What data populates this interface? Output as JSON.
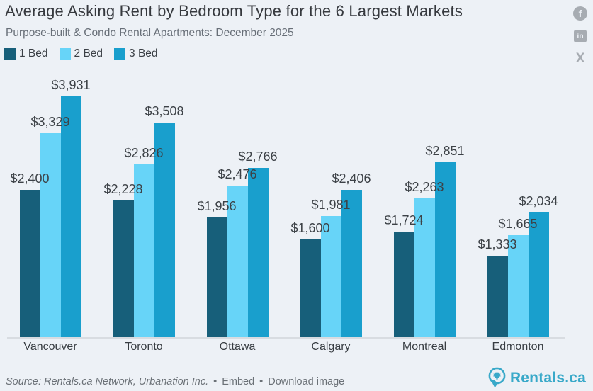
{
  "header": {
    "title": "Average Asking Rent by Bedroom Type for the 6 Largest Markets",
    "subtitle": "Purpose-built & Condo Rental Apartments: December 2025"
  },
  "legend": [
    {
      "label": "1 Bed",
      "color": "#175f7a"
    },
    {
      "label": "2 Bed",
      "color": "#67d4f8"
    },
    {
      "label": "3 Bed",
      "color": "#199fcd"
    }
  ],
  "social": [
    {
      "name": "facebook",
      "glyph": "f"
    },
    {
      "name": "linkedin",
      "glyph": "in"
    },
    {
      "name": "x",
      "glyph": "X"
    }
  ],
  "chart_data": {
    "type": "bar",
    "title": "Average Asking Rent by Bedroom Type for the 6 Largest Markets",
    "subtitle": "Purpose-built & Condo Rental Apartments: December 2025",
    "categories": [
      "Vancouver",
      "Toronto",
      "Ottawa",
      "Calgary",
      "Montreal",
      "Edmonton"
    ],
    "series": [
      {
        "name": "1 Bed",
        "color": "#175f7a",
        "values": [
          2400,
          2228,
          1956,
          1600,
          1724,
          1333
        ],
        "labels": [
          "$2,400",
          "$2,228",
          "$1,956",
          "$1,600",
          "$1,724",
          "$1,333"
        ]
      },
      {
        "name": "2 Bed",
        "color": "#67d4f8",
        "values": [
          3329,
          2826,
          2476,
          1981,
          2263,
          1665
        ],
        "labels": [
          "$3,329",
          "$2,826",
          "$2,476",
          "$1,981",
          "$2,263",
          "$1,665"
        ]
      },
      {
        "name": "3 Bed",
        "color": "#199fcd",
        "values": [
          3931,
          3508,
          2766,
          2406,
          2851,
          2034
        ],
        "labels": [
          "$3,931",
          "$3,508",
          "$2,766",
          "$2,406",
          "$2,851",
          "$2,034"
        ]
      }
    ],
    "xlabel": "",
    "ylabel": "",
    "ylim": [
      0,
      4100
    ],
    "grid": false,
    "value_labels_shown": true,
    "legend_position": "top-left"
  },
  "footer": {
    "source": "Source: Rentals.ca Network, Urbanation Inc.",
    "bullet": "•",
    "embed_label": "Embed",
    "download_label": "Download image",
    "brand": "Rentals.ca"
  }
}
